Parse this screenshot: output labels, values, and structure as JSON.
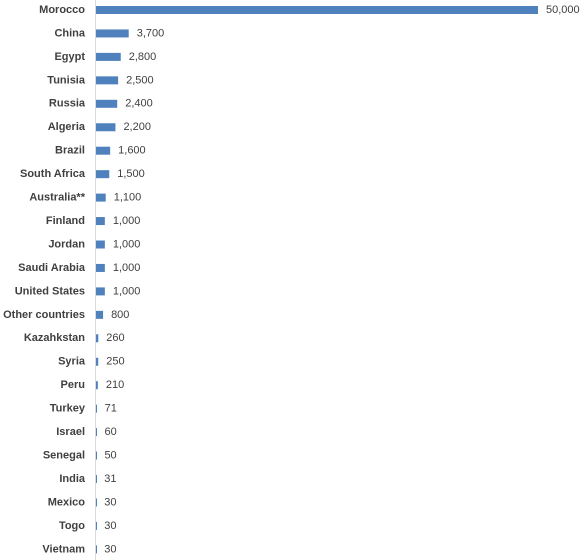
{
  "chart_data": {
    "type": "bar",
    "orientation": "horizontal",
    "categories": [
      "Morocco",
      "China",
      "Egypt",
      "Tunisia",
      "Russia",
      "Algeria",
      "Brazil",
      "South Africa",
      "Australia**",
      "Finland",
      "Jordan",
      "Saudi Arabia",
      "United States",
      "Other countries",
      "Kazahkstan",
      "Syria",
      "Peru",
      "Turkey",
      "Israel",
      "Senegal",
      "India",
      "Mexico",
      "Togo",
      "Vietnam"
    ],
    "values": [
      50000,
      3700,
      2800,
      2500,
      2400,
      2200,
      1600,
      1500,
      1100,
      1000,
      1000,
      1000,
      1000,
      800,
      260,
      250,
      210,
      71,
      60,
      50,
      31,
      30,
      30,
      30
    ],
    "value_labels": [
      "50,000",
      "3,700",
      "2,800",
      "2,500",
      "2,400",
      "2,200",
      "1,600",
      "1,500",
      "1,100",
      "1,000",
      "1,000",
      "1,000",
      "1,000",
      "800",
      "260",
      "250",
      "210",
      "71",
      "60",
      "50",
      "31",
      "30",
      "30",
      "30"
    ],
    "color": "#4f81bd",
    "xlim": [
      0,
      50000
    ]
  }
}
